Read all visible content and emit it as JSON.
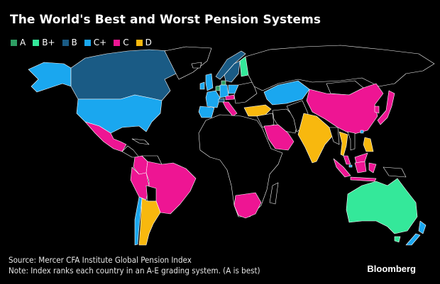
{
  "title": "The World's Best and Worst Pension Systems",
  "legend": [
    {
      "label": "A",
      "color": "#2e9e63"
    },
    {
      "label": "B+",
      "color": "#34e89a"
    },
    {
      "label": "B",
      "color": "#1a5b85"
    },
    {
      "label": "C+",
      "color": "#1aa7ef"
    },
    {
      "label": "C",
      "color": "#ee1593"
    },
    {
      "label": "D",
      "color": "#f8b80e"
    }
  ],
  "map_data": {
    "no_data_color": "#000000",
    "grades": {
      "Netherlands": "A",
      "Denmark": "A",
      "Australia": "B+",
      "Finland": "B+",
      "Canada": "B",
      "Sweden": "B",
      "Norway": "B",
      "Switzerland": "B",
      "United States": "C+",
      "Chile": "C+",
      "Kazakhstan": "C+",
      "United Kingdom": "C+",
      "Ireland": "C+",
      "France": "C+",
      "Germany": "C+",
      "Poland": "C+",
      "Spain": "C+",
      "New Zealand": "C+",
      "Singapore": "C+",
      "Hong Kong": "C+",
      "Mexico": "C",
      "Colombia": "C",
      "Peru": "C",
      "Brazil": "C",
      "Austria": "C",
      "Italy": "C",
      "Saudi Arabia": "C",
      "South Africa": "C",
      "China": "C",
      "Japan": "C",
      "South Korea": "C",
      "Malaysia": "C",
      "Indonesia": "C",
      "Argentina": "D",
      "Turkey": "D",
      "India": "D",
      "Thailand": "D",
      "Philippines": "D"
    }
  },
  "footer": {
    "source": "Source: Mercer CFA Institute Global Pension Index",
    "note": "Note: Index ranks each country in an A-E grading system. (A is best)"
  },
  "brand": "Bloomberg"
}
